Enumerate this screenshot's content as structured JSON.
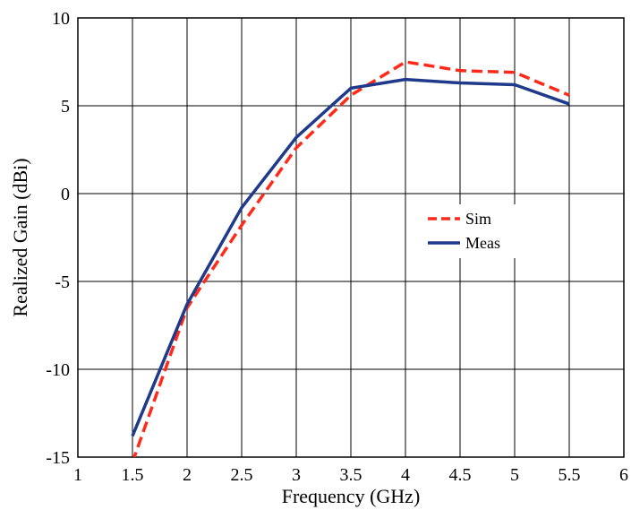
{
  "chart_data": {
    "type": "line",
    "xlabel": "Frequency (GHz)",
    "ylabel": "Realized Gain (dBi)",
    "xlim": [
      1,
      6
    ],
    "ylim": [
      -15,
      10
    ],
    "xticks": [
      1,
      1.5,
      2,
      2.5,
      3,
      3.5,
      4,
      4.5,
      5,
      5.5,
      6
    ],
    "xtick_labels": [
      "1",
      "1.5",
      "2",
      "2.5",
      "3",
      "3.5",
      "4",
      "4.5",
      "5",
      "5.5",
      "6"
    ],
    "yticks": [
      -15,
      -10,
      -5,
      0,
      5,
      10
    ],
    "ytick_labels": [
      "-15",
      "-10",
      "-5",
      "0",
      "5",
      "10"
    ],
    "grid": true,
    "legend_position": "center-right",
    "series": [
      {
        "name": "Sim",
        "color": "#ff2a1a",
        "dash": "dashed",
        "x": [
          1.5,
          2,
          2.5,
          3,
          3.5,
          4,
          4.5,
          5,
          5.5
        ],
        "y": [
          -15.3,
          -6.5,
          -1.8,
          2.6,
          5.6,
          7.5,
          7.0,
          6.9,
          5.6
        ]
      },
      {
        "name": "Meas",
        "color": "#1f3a8a",
        "dash": "solid",
        "x": [
          1.5,
          2,
          2.5,
          3,
          3.5,
          4,
          4.5,
          5,
          5.5
        ],
        "y": [
          -13.8,
          -6.3,
          -0.8,
          3.2,
          6.0,
          6.5,
          6.3,
          6.2,
          5.1
        ]
      }
    ]
  }
}
